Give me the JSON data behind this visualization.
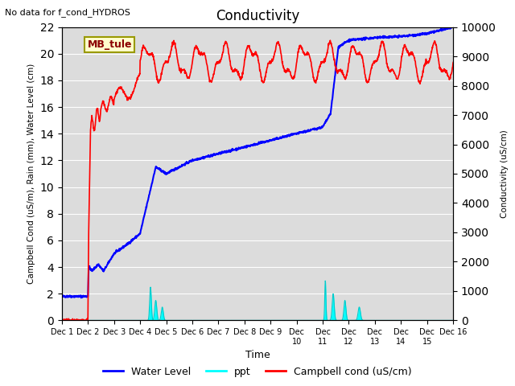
{
  "title": "Conductivity",
  "top_left_text": "No data for f_cond_HYDROS",
  "ylabel_left": "Campbell Cond (uS/m), Rain (mm), Water Level (cm)",
  "ylabel_right": "Conductivity (uS/cm)",
  "xlabel": "Time",
  "ylim_left": [
    0,
    22
  ],
  "ylim_right": [
    0,
    10000
  ],
  "yticks_left": [
    0,
    2,
    4,
    6,
    8,
    10,
    12,
    14,
    16,
    18,
    20,
    22
  ],
  "yticks_right": [
    0,
    1000,
    2000,
    3000,
    4000,
    5000,
    6000,
    7000,
    8000,
    9000,
    10000
  ],
  "xtick_labels": [
    "Dec 1",
    "Dec 2",
    "Dec 3",
    "Dec 4",
    "Dec 5",
    "Dec 6",
    "Dec 7",
    "Dec 8",
    "Dec 9",
    "Dec 9",
    "Dec 10",
    "Dec 11",
    "Dec 12",
    "Dec 13",
    "Dec 14",
    "Dec 15",
    "Dec 16"
  ],
  "background_color": "#dcdcdc",
  "annotation_box": "MB_tule",
  "annotation_box_color": "#ffffcc",
  "annotation_box_border": "#cc8800"
}
